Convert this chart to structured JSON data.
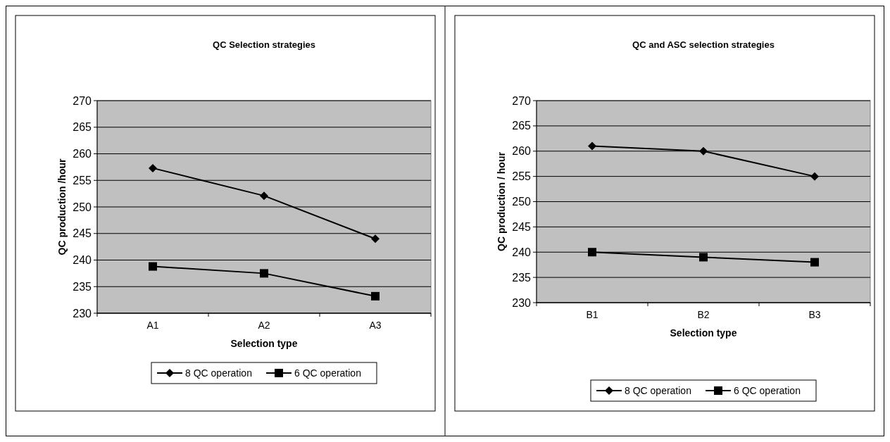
{
  "chart_data": [
    {
      "type": "line",
      "title": "QC Selection strategies",
      "xlabel": "Selection type",
      "ylabel": "QC production /hour",
      "categories": [
        "A1",
        "A2",
        "A3"
      ],
      "ylim": [
        230,
        270
      ],
      "yticks": [
        230,
        235,
        240,
        245,
        250,
        255,
        260,
        265,
        270
      ],
      "grid": "y",
      "legend": "bottom",
      "series": [
        {
          "name": "8 QC operation",
          "color": "#000000",
          "marker": "diamond",
          "values": [
            257.3,
            252.1,
            244
          ]
        },
        {
          "name": "6 QC operation",
          "color": "#000000",
          "marker": "square",
          "values": [
            238.8,
            237.5,
            233.2
          ]
        }
      ]
    },
    {
      "type": "line",
      "title": "QC and ASC selection strategies",
      "xlabel": "Selection type",
      "ylabel": "QC production / hour",
      "categories": [
        "B1",
        "B2",
        "B3"
      ],
      "ylim": [
        230,
        270
      ],
      "yticks": [
        230,
        235,
        240,
        245,
        250,
        255,
        260,
        265,
        270
      ],
      "grid": "y",
      "legend": "bottom",
      "series": [
        {
          "name": "8 QC operation",
          "color": "#000000",
          "marker": "diamond",
          "values": [
            261,
            260,
            255
          ]
        },
        {
          "name": "6 QC operation",
          "color": "#000000",
          "marker": "square",
          "values": [
            240,
            239,
            238
          ]
        }
      ]
    }
  ]
}
